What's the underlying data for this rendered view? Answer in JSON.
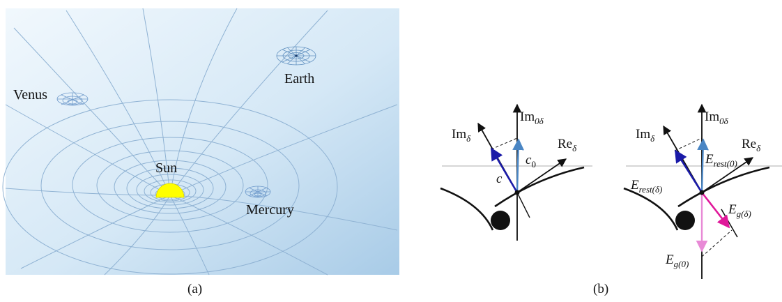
{
  "panel_a": {
    "caption": "(a)",
    "labels": {
      "sun": "Sun",
      "earth": "Earth",
      "venus": "Venus",
      "mercury": "Mercury"
    },
    "colors": {
      "sky_top": "#eef6fc",
      "sky_bottom": "#a9cbe6",
      "grid": "#8fb2d3",
      "sun": "#ffff00"
    }
  },
  "panel_b": {
    "caption": "(b)",
    "left": {
      "im0": "Im",
      "im0_sub": "0δ",
      "im": "Im",
      "im_sub": "δ",
      "re": "Re",
      "re_sub": "δ",
      "c": "c",
      "c0": "c",
      "c0_sub": "0"
    },
    "right": {
      "im0": "Im",
      "im0_sub": "0δ",
      "im": "Im",
      "im_sub": "δ",
      "re": "Re",
      "re_sub": "δ",
      "e_rest0": "E",
      "e_rest0_sub": "rest(0)",
      "e_restd": "E",
      "e_restd_sub": "rest(δ)",
      "e_gd": "E",
      "e_gd_sub": "g(δ)",
      "e_g0": "E",
      "e_g0_sub": "g(0)"
    },
    "colors": {
      "blue_dark": "#1a1aa8",
      "blue_light": "#4a86c4",
      "magenta": "#e0189a",
      "pink": "#e88ad6"
    }
  }
}
